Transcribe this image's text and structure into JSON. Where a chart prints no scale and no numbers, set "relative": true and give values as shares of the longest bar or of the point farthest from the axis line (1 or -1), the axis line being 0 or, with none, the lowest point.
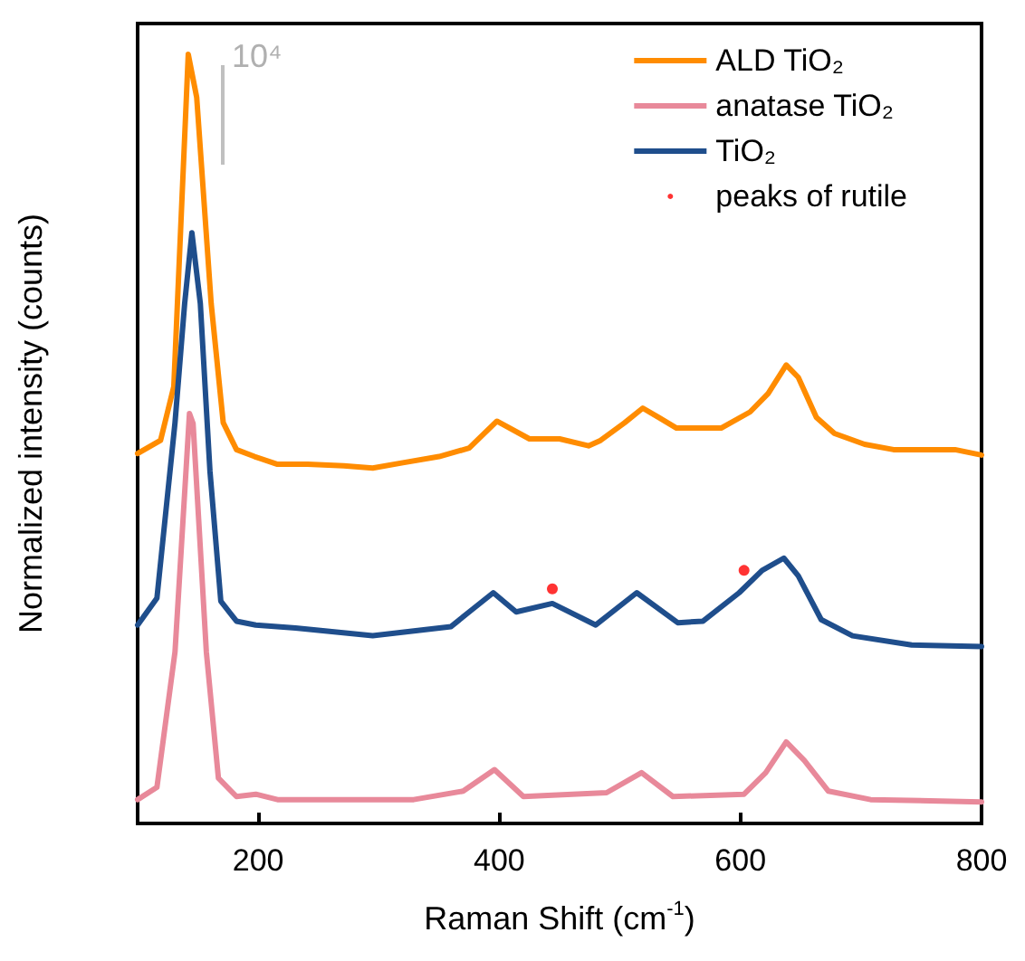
{
  "chart_data": {
    "type": "line",
    "relative": true,
    "xlabel": "Raman Shift (cm$^{-1}$)",
    "ylabel": "Normalized intensity (counts)",
    "xlim": [
      100,
      800
    ],
    "xticks": [
      200,
      400,
      600,
      800
    ],
    "tick_labels": "x",
    "grid": false,
    "legend": "top right",
    "marker": "none",
    "line_style": "solid",
    "annotations": [
      "10⁴"
    ],
    "series": [
      {
        "name": "ALD TiO₂",
        "color": "#ff8c00",
        "x": [
          100,
          119,
          130,
          142,
          149,
          161,
          171,
          182,
          197,
          216,
          241,
          271,
          295,
          320,
          350,
          375,
          398,
          425,
          450,
          474,
          484,
          504,
          519,
          532,
          547,
          584,
          608,
          623,
          638,
          648,
          663,
          678,
          703,
          727,
          778,
          800
        ],
        "values": [
          0.481,
          0.498,
          0.568,
          1.0,
          0.944,
          0.676,
          0.521,
          0.486,
          0.477,
          0.467,
          0.467,
          0.465,
          0.462,
          0.469,
          0.477,
          0.488,
          0.523,
          0.5,
          0.5,
          0.491,
          0.498,
          0.521,
          0.54,
          0.528,
          0.514,
          0.514,
          0.535,
          0.559,
          0.596,
          0.58,
          0.528,
          0.507,
          0.493,
          0.486,
          0.486,
          0.479
        ]
      },
      {
        "name": "anatase TiO₂",
        "color": "#e8899a",
        "x": [
          100,
          116,
          131,
          143,
          146,
          157,
          167,
          182,
          198,
          216,
          329,
          370,
          396,
          420,
          489,
          518,
          544,
          603,
          621,
          638,
          653,
          673,
          708,
          800
        ],
        "values": [
          0.031,
          0.047,
          0.223,
          0.533,
          0.52,
          0.223,
          0.059,
          0.035,
          0.038,
          0.031,
          0.031,
          0.042,
          0.07,
          0.035,
          0.04,
          0.066,
          0.035,
          0.038,
          0.066,
          0.106,
          0.082,
          0.042,
          0.031,
          0.028
        ]
      },
      {
        "name": "TiO₂",
        "color": "#1f4e8c",
        "x": [
          100,
          116,
          131,
          139,
          145,
          152,
          160,
          169,
          182,
          198,
          231,
          295,
          360,
          375,
          395,
          414,
          444,
          480,
          514,
          548,
          569,
          599,
          618,
          636,
          648,
          667,
          693,
          742,
          800
        ],
        "values": [
          0.258,
          0.293,
          0.521,
          0.676,
          0.768,
          0.676,
          0.458,
          0.289,
          0.263,
          0.258,
          0.254,
          0.244,
          0.256,
          0.275,
          0.3,
          0.275,
          0.286,
          0.258,
          0.3,
          0.261,
          0.263,
          0.3,
          0.329,
          0.345,
          0.322,
          0.265,
          0.244,
          0.232,
          0.23
        ]
      },
      {
        "name": "peaks of rutile",
        "type": "scatter",
        "marker": "circle",
        "color": "#ff0000",
        "x": [
          444,
          603
        ],
        "values": [
          0.305,
          0.329
        ]
      }
    ]
  }
}
